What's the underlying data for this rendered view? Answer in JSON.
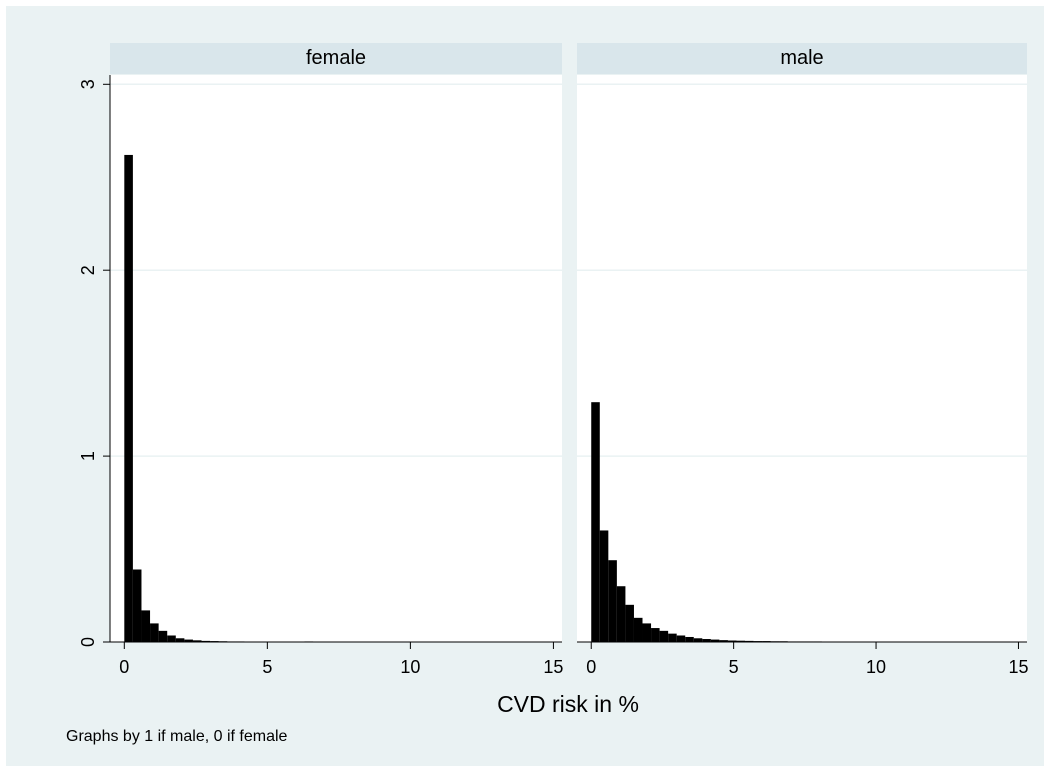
{
  "chart_data": {
    "type": "bar",
    "chart_subtype": "histogram",
    "xlabel": "CVD risk in %",
    "ylabel": "",
    "xlim": [
      -0.5,
      15.3
    ],
    "ylim": [
      0,
      3.05
    ],
    "x_ticks": [
      0,
      5,
      10,
      15
    ],
    "y_ticks": [
      0,
      1,
      2,
      3
    ],
    "grid": true,
    "bin_width": 0.3,
    "note": "Graphs by 1 if male, 0 if female",
    "panels": [
      {
        "title": "female",
        "bin_start": [
          0,
          0.3,
          0.6,
          0.9,
          1.2,
          1.5,
          1.8,
          2.1,
          2.4,
          2.7,
          3.0,
          3.3,
          3.6,
          3.9,
          4.2,
          4.5,
          4.8,
          5.7,
          6.3
        ],
        "density": [
          2.62,
          0.39,
          0.17,
          0.1,
          0.06,
          0.035,
          0.02,
          0.013,
          0.009,
          0.006,
          0.005,
          0.004,
          0.003,
          0.003,
          0.002,
          0.002,
          0.002,
          0.002,
          0.003
        ]
      },
      {
        "title": "male",
        "bin_start": [
          0,
          0.3,
          0.6,
          0.9,
          1.2,
          1.5,
          1.8,
          2.1,
          2.4,
          2.7,
          3.0,
          3.3,
          3.6,
          3.9,
          4.2,
          4.5,
          4.8,
          5.1,
          5.4,
          5.7,
          6.0,
          6.3,
          6.6,
          6.9,
          7.2,
          7.5,
          7.8,
          8.1,
          8.4,
          8.7,
          9.0,
          9.3,
          9.6,
          9.9,
          10.2,
          10.5,
          10.8,
          11.7,
          12.0,
          12.6,
          12.9,
          13.8,
          14.1
        ],
        "density": [
          1.29,
          0.6,
          0.44,
          0.3,
          0.2,
          0.13,
          0.1,
          0.075,
          0.06,
          0.045,
          0.035,
          0.027,
          0.02,
          0.016,
          0.013,
          0.01,
          0.008,
          0.007,
          0.006,
          0.005,
          0.005,
          0.004,
          0.004,
          0.003,
          0.003,
          0.003,
          0.003,
          0.002,
          0.002,
          0.002,
          0.002,
          0.002,
          0.002,
          0.002,
          0.002,
          0.002,
          0.002,
          0.002,
          0.002,
          0.002,
          0.002,
          0.002,
          0.002
        ]
      }
    ]
  }
}
